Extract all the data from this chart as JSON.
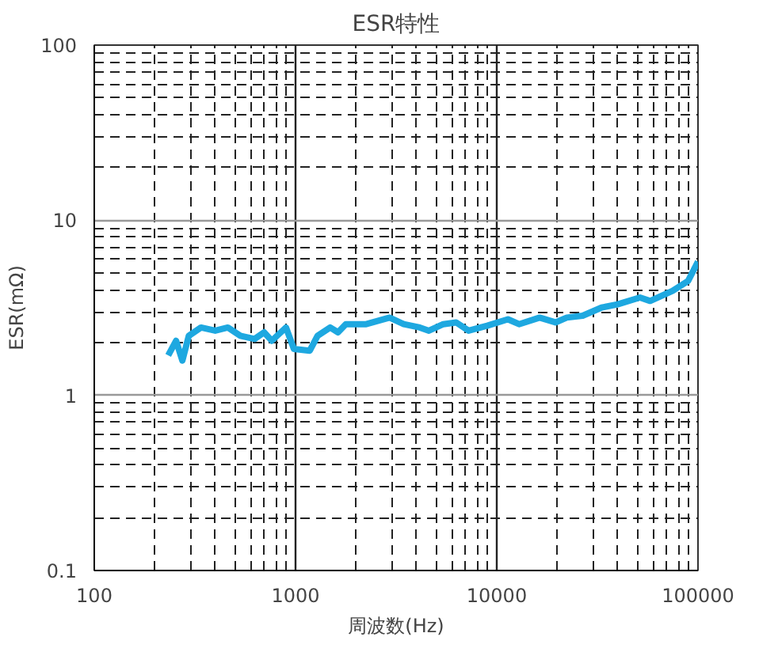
{
  "chart_data": {
    "type": "line",
    "title": "ESR特性",
    "xlabel": "周波数(Hz)",
    "ylabel": "ESR(mΩ)",
    "log": "xy",
    "grid": true,
    "marker": "none",
    "line_style": "solid",
    "xlim": [
      100,
      100000
    ],
    "ylim": [
      0.1,
      100
    ],
    "xticks": [
      100,
      1000,
      10000,
      100000
    ],
    "yticks": [
      0.1,
      1,
      10,
      100
    ],
    "x": [
      233,
      255,
      274,
      295,
      339,
      399,
      461,
      532,
      626,
      698,
      762,
      897,
      982,
      1177,
      1287,
      1487,
      1626,
      1778,
      2245,
      2934,
      3449,
      4148,
      4601,
      5424,
      6285,
      7244,
      8966,
      11360,
      12910,
      16330,
      19580,
      22280,
      26730,
      33140,
      39850,
      51470,
      57850,
      74700,
      89250,
      100000
    ],
    "series": [
      {
        "color": "#1ea8e0",
        "values": [
          1.69,
          2.05,
          1.58,
          2.19,
          2.44,
          2.34,
          2.44,
          2.19,
          2.1,
          2.29,
          2.05,
          2.44,
          1.84,
          1.8,
          2.19,
          2.44,
          2.29,
          2.55,
          2.55,
          2.78,
          2.55,
          2.44,
          2.34,
          2.55,
          2.61,
          2.34,
          2.5,
          2.72,
          2.55,
          2.78,
          2.61,
          2.78,
          2.85,
          3.17,
          3.31,
          3.62,
          3.46,
          3.95,
          4.5,
          5.8
        ]
      }
    ]
  }
}
